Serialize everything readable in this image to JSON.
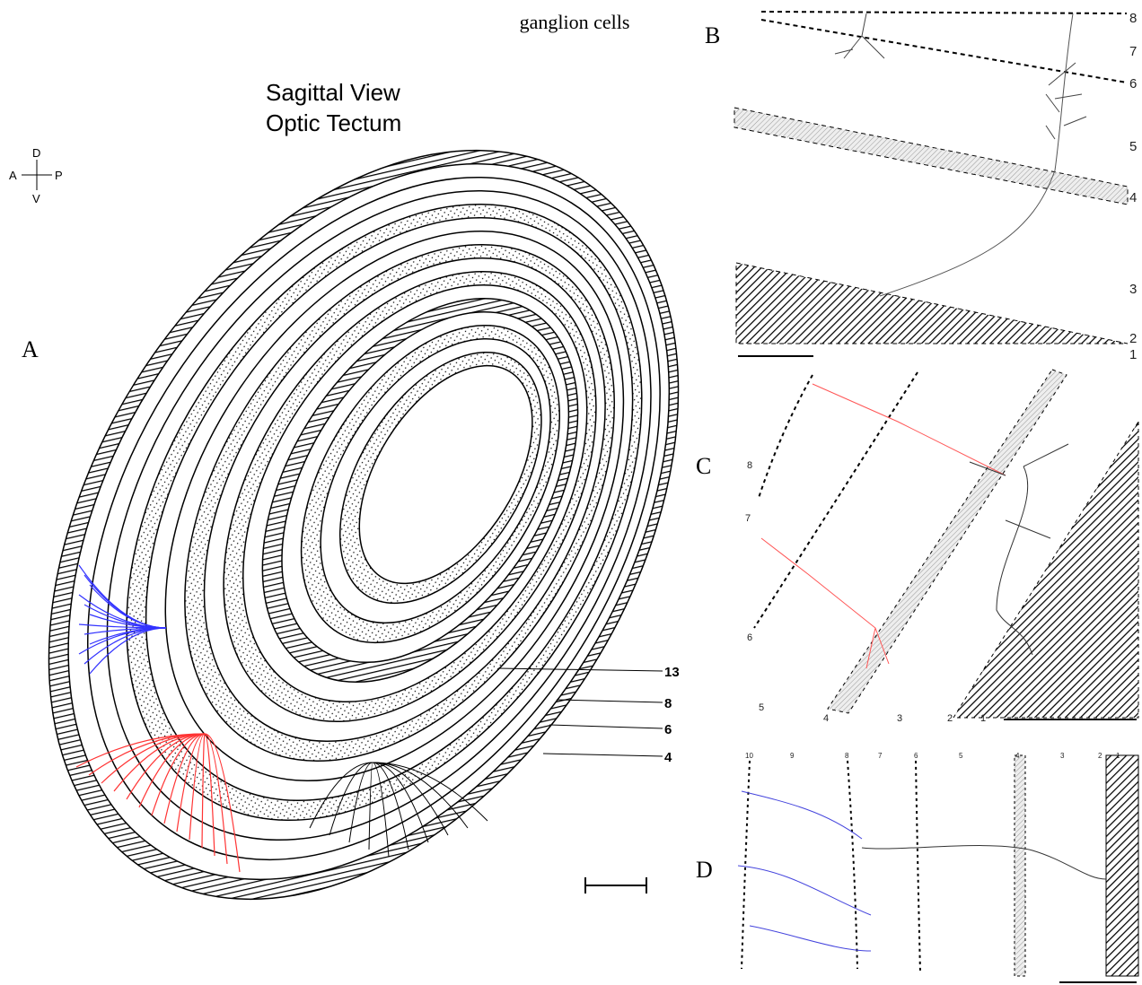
{
  "header": {
    "caption_fragment": "ganglion cells"
  },
  "panel_a": {
    "label": "A",
    "title_lines": [
      "Sagittal View",
      "Optic Tectum"
    ],
    "compass": {
      "dorsal": "D",
      "anterior": "A",
      "posterior": "P",
      "ventral": "V"
    },
    "layer_labels": [
      "13",
      "8",
      "6",
      "4"
    ]
  },
  "panel_b": {
    "label": "B",
    "layer_labels": [
      "8",
      "7",
      "6",
      "5",
      "4",
      "3",
      "2",
      "1"
    ]
  },
  "panel_c": {
    "label": "C",
    "layer_labels": [
      "8",
      "7",
      "6",
      "5",
      "4",
      "3",
      "2",
      "1"
    ]
  },
  "panel_d": {
    "label": "D",
    "layer_labels": [
      "10",
      "9",
      "8",
      "7",
      "6",
      "5",
      "4",
      "3",
      "2",
      "1"
    ]
  }
}
